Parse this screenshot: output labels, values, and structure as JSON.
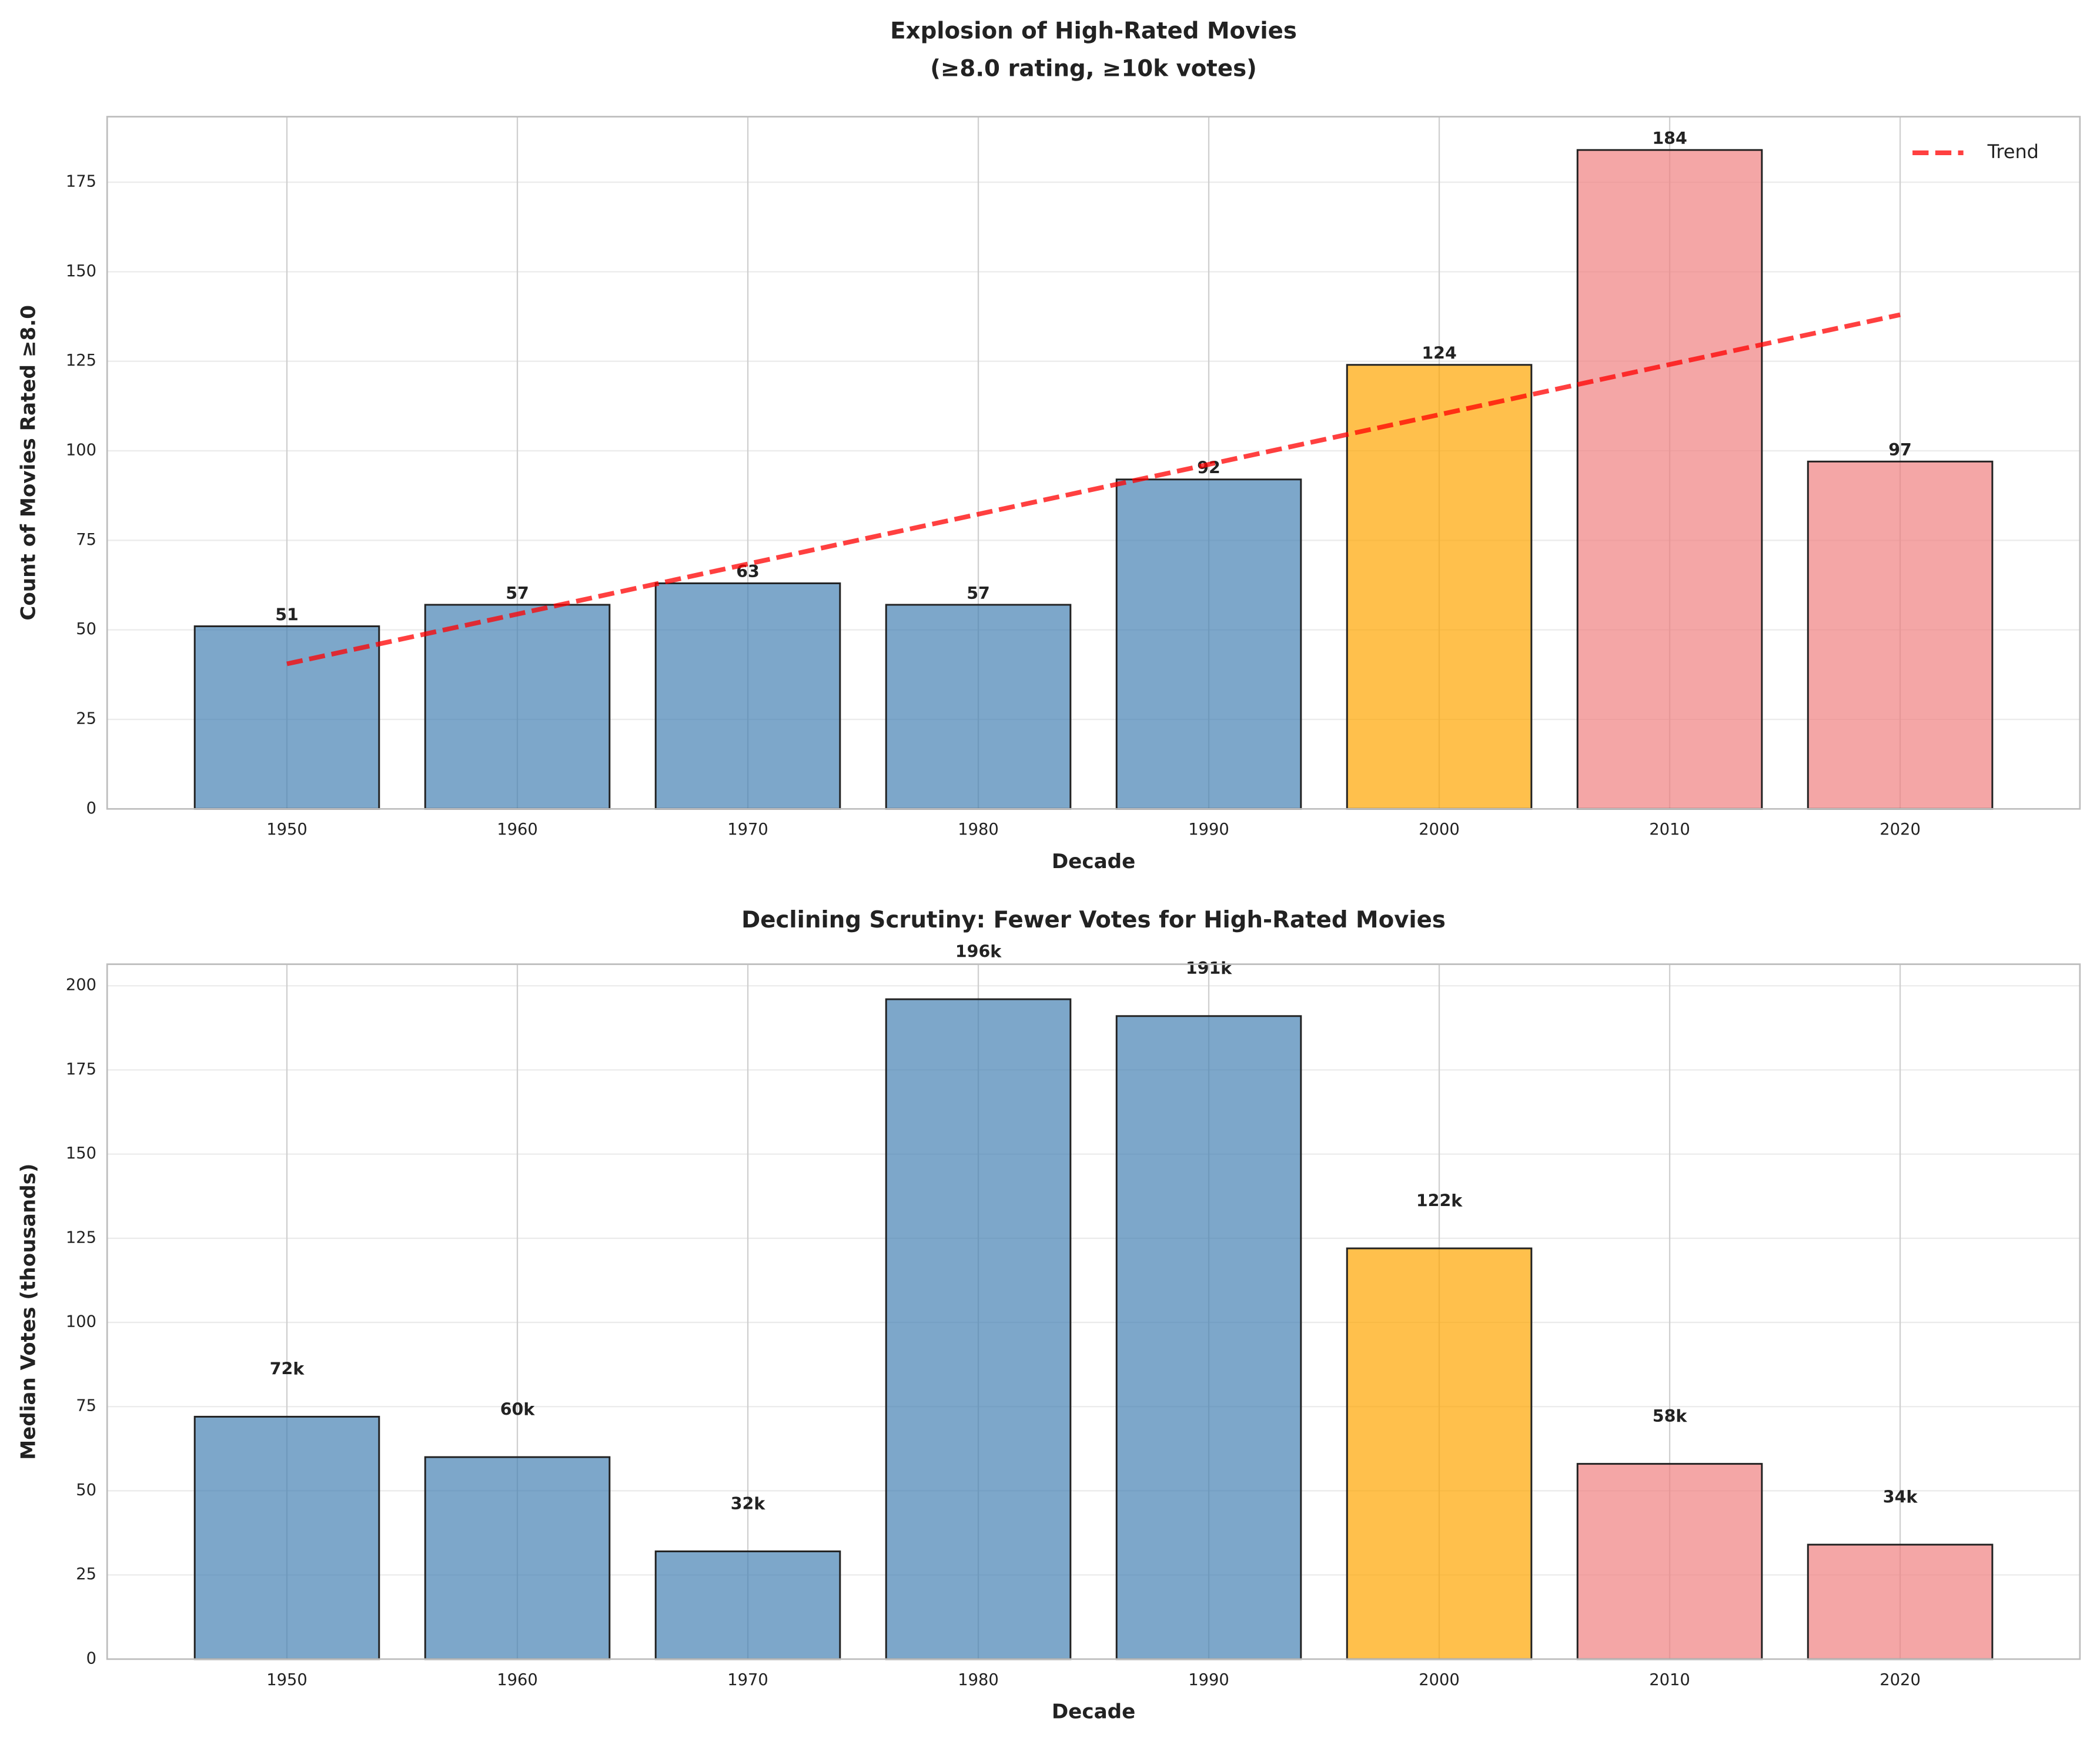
{
  "chart_data": [
    {
      "type": "bar",
      "title": [
        "Explosion of High-Rated Movies",
        "(≥8.0 rating, ≥10k votes)"
      ],
      "xlabel": "Decade",
      "ylabel": "Count of Movies Rated ≥8.0",
      "categories": [
        "1950",
        "1960",
        "1970",
        "1980",
        "1990",
        "2000",
        "2010",
        "2020"
      ],
      "values": [
        51,
        57,
        63,
        57,
        92,
        124,
        184,
        97
      ],
      "colors": [
        "#4682b4",
        "#4682b4",
        "#4682b4",
        "#4682b4",
        "#4682b4",
        "#ffa500",
        "#f08080",
        "#f08080"
      ],
      "trend": {
        "name": "Trend",
        "color": "#ff0000",
        "values": [
          40.5,
          54.4,
          68.4,
          82.3,
          96.2,
          110.1,
          124.1,
          138
        ]
      },
      "legend": "upper right",
      "ylim": [
        0,
        193.3
      ],
      "yticks": [
        0,
        25,
        50,
        75,
        100,
        125,
        150,
        175
      ],
      "grid": true
    },
    {
      "type": "bar",
      "title": [
        "Declining Scrutiny: Fewer Votes for High-Rated Movies"
      ],
      "xlabel": "Decade",
      "ylabel": "Median Votes (thousands)",
      "categories": [
        "1950",
        "1960",
        "1970",
        "1980",
        "1990",
        "2000",
        "2010",
        "2020"
      ],
      "values": [
        72,
        60,
        32,
        196,
        191,
        122,
        58,
        34
      ],
      "value_labels": [
        "72k",
        "60k",
        "32k",
        "196k",
        "191k",
        "122k",
        "58k",
        "34k"
      ],
      "colors": [
        "#4682b4",
        "#4682b4",
        "#4682b4",
        "#4682b4",
        "#4682b4",
        "#ffa500",
        "#f08080",
        "#f08080"
      ],
      "ylim": [
        0,
        206.4
      ],
      "yticks": [
        0,
        25,
        50,
        75,
        100,
        125,
        150,
        175,
        200
      ],
      "grid": true
    }
  ]
}
